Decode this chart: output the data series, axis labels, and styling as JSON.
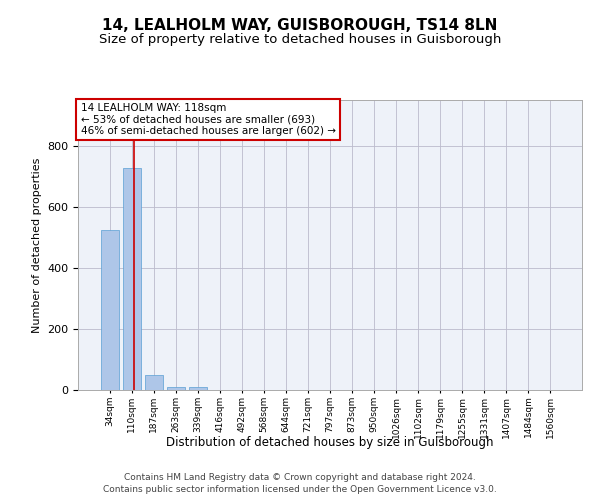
{
  "title1": "14, LEALHOLM WAY, GUISBOROUGH, TS14 8LN",
  "title2": "Size of property relative to detached houses in Guisborough",
  "xlabel": "Distribution of detached houses by size in Guisborough",
  "ylabel": "Number of detached properties",
  "categories": [
    "34sqm",
    "110sqm",
    "187sqm",
    "263sqm",
    "339sqm",
    "416sqm",
    "492sqm",
    "568sqm",
    "644sqm",
    "721sqm",
    "797sqm",
    "873sqm",
    "950sqm",
    "1026sqm",
    "1102sqm",
    "1179sqm",
    "1255sqm",
    "1331sqm",
    "1407sqm",
    "1484sqm",
    "1560sqm"
  ],
  "values": [
    525,
    728,
    48,
    11,
    10,
    0,
    0,
    0,
    0,
    0,
    0,
    0,
    0,
    0,
    0,
    0,
    0,
    0,
    0,
    0,
    0
  ],
  "bar_color": "#aec6e8",
  "bar_edge_color": "#5a9fd4",
  "background_color": "#eef2f9",
  "grid_color": "#bbbbcc",
  "property_line_color": "#cc0000",
  "annotation_text": "14 LEALHOLM WAY: 118sqm\n← 53% of detached houses are smaller (693)\n46% of semi-detached houses are larger (602) →",
  "annotation_box_color": "#cc0000",
  "footer1": "Contains HM Land Registry data © Crown copyright and database right 2024.",
  "footer2": "Contains public sector information licensed under the Open Government Licence v3.0.",
  "ylim": [
    0,
    950
  ],
  "title1_fontsize": 11,
  "title2_fontsize": 9.5,
  "bar_width": 0.8
}
